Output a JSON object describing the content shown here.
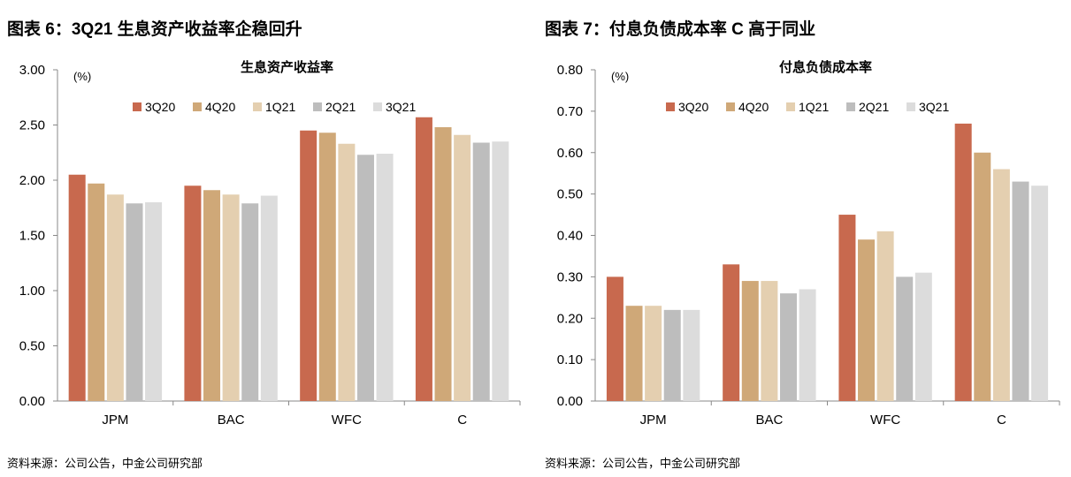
{
  "figures": [
    {
      "figure_title": "图表 6：3Q21 生息资产收益率企稳回升",
      "source": "资料来源：公司公告，中金公司研究部"
    },
    {
      "figure_title": "图表 7：付息负债成本率 C 高于同业",
      "source": "资料来源：公司公告，中金公司研究部"
    }
  ],
  "colors": [
    "#c8694e",
    "#cfa878",
    "#e4cfb0",
    "#bdbdbd",
    "#dcdcdc"
  ],
  "chart_data": [
    {
      "type": "bar",
      "title": "生息资产收益率",
      "unit": "(%)",
      "categories": [
        "JPM",
        "BAC",
        "WFC",
        "C"
      ],
      "series": [
        {
          "name": "3Q20",
          "values": [
            2.05,
            1.95,
            2.45,
            2.57
          ]
        },
        {
          "name": "4Q20",
          "values": [
            1.97,
            1.91,
            2.43,
            2.48
          ]
        },
        {
          "name": "1Q21",
          "values": [
            1.87,
            1.87,
            2.33,
            2.41
          ]
        },
        {
          "name": "2Q21",
          "values": [
            1.79,
            1.79,
            2.23,
            2.34
          ]
        },
        {
          "name": "3Q21",
          "values": [
            1.8,
            1.86,
            2.24,
            2.35
          ]
        }
      ],
      "ylim": [
        0,
        3.0
      ],
      "yticks": [
        "0.00",
        "0.50",
        "1.00",
        "1.50",
        "2.00",
        "2.50",
        "3.00"
      ],
      "legend": "top",
      "grid": false
    },
    {
      "type": "bar",
      "title": "付息负债成本率",
      "unit": "(%)",
      "categories": [
        "JPM",
        "BAC",
        "WFC",
        "C"
      ],
      "series": [
        {
          "name": "3Q20",
          "values": [
            0.3,
            0.33,
            0.45,
            0.67
          ]
        },
        {
          "name": "4Q20",
          "values": [
            0.23,
            0.29,
            0.39,
            0.6
          ]
        },
        {
          "name": "1Q21",
          "values": [
            0.23,
            0.29,
            0.41,
            0.56
          ]
        },
        {
          "name": "2Q21",
          "values": [
            0.22,
            0.26,
            0.3,
            0.53
          ]
        },
        {
          "name": "3Q21",
          "values": [
            0.22,
            0.27,
            0.31,
            0.52
          ]
        }
      ],
      "ylim": [
        0,
        0.8
      ],
      "yticks": [
        "0.00",
        "0.10",
        "0.20",
        "0.30",
        "0.40",
        "0.50",
        "0.60",
        "0.70",
        "0.80"
      ],
      "legend": "top",
      "grid": false
    }
  ]
}
